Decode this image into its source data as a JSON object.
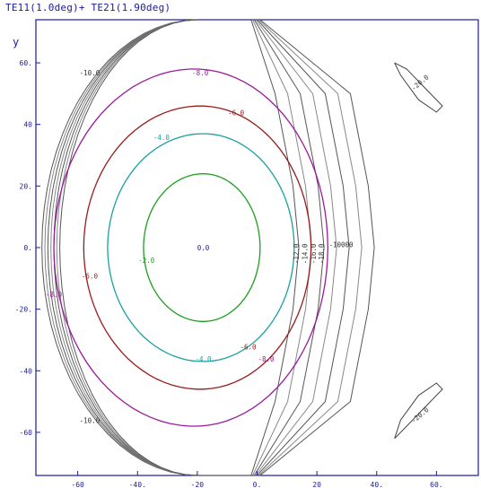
{
  "chart_data": {
    "type": "contour",
    "title": "TE11(1.0deg)+ TE21(1.90deg)",
    "xlabel": "",
    "ylabel": "y",
    "xlim": [
      -74,
      74
    ],
    "ylim": [
      -74,
      74
    ],
    "x_ticks": [
      {
        "value": -60,
        "label": "-60"
      },
      {
        "value": -40,
        "label": "-40."
      },
      {
        "value": -20,
        "label": "-20"
      },
      {
        "value": 0,
        "label": "0."
      },
      {
        "value": 20,
        "label": "20"
      },
      {
        "value": 40,
        "label": "40."
      },
      {
        "value": 60,
        "label": "60."
      }
    ],
    "y_ticks": [
      {
        "value": 60,
        "label": "60."
      },
      {
        "value": 40,
        "label": "40"
      },
      {
        "value": 20,
        "label": "20."
      },
      {
        "value": 0,
        "label": "0."
      },
      {
        "value": -20,
        "label": "-20."
      },
      {
        "value": -40,
        "label": "-40"
      },
      {
        "value": -60,
        "label": "-60"
      }
    ],
    "peak": {
      "x": -18,
      "y": 0,
      "label": "0.0"
    },
    "contours": [
      {
        "level": -2,
        "label": "-2.0",
        "color": "#1ea01e",
        "cx": -18,
        "cy": 0,
        "rx": 20,
        "ry": 24,
        "label_at": {
          "x": -37,
          "y": -5
        }
      },
      {
        "level": -4,
        "label": "-4.0",
        "color": "#1aa0a0",
        "cx": -18,
        "cy": 0,
        "rx": 32,
        "ry": 37,
        "label_at": {
          "x": -32,
          "y": 35
        },
        "label2": "-4.0",
        "label2_at": {
          "x": -18,
          "y": -37
        }
      },
      {
        "level": -6,
        "label": "-6.0",
        "color": "#9a1a1a",
        "cx": -19,
        "cy": 0,
        "rx": 39,
        "ry": 46,
        "label_at": {
          "x": -7,
          "y": 43
        },
        "label2": "-6.0",
        "label2_at": {
          "x": -3,
          "y": -33
        },
        "label3": "-6.0",
        "label3_at": {
          "x": -56,
          "y": -10
        }
      },
      {
        "level": -8,
        "label": "-8.0",
        "color": "#9a1a9a",
        "cx": -21,
        "cy": 0,
        "rx": 47,
        "ry": 58,
        "label_at": {
          "x": -19,
          "y": 56
        },
        "label2": "-8.0",
        "label2_at": {
          "x": 3,
          "y": -37
        },
        "label3": "-8.0",
        "label3_at": {
          "x": -68,
          "y": -16
        }
      }
    ],
    "outer_contours": [
      {
        "color": "#555555",
        "x0": -72
      },
      {
        "color": "#888888",
        "x0": -71
      },
      {
        "color": "#555555",
        "x0": -70
      },
      {
        "color": "#888888",
        "x0": -69
      },
      {
        "color": "#555555",
        "x0": -68
      },
      {
        "color": "#888888",
        "x0": -67
      },
      {
        "color": "#555555",
        "x0": -66
      }
    ],
    "outer_labels": [
      {
        "label": "-10.0",
        "x": -56,
        "y": 56
      },
      {
        "label": "-10.0",
        "x": -56,
        "y": -57
      }
    ],
    "edge_labels": [
      "-12.0",
      "-14.0",
      "-16.0",
      "-18.0"
    ],
    "right_label": "-10000",
    "side_lobes": [
      {
        "label": "-20.0",
        "cx": 55,
        "cy": 53
      },
      {
        "label": "-20.0",
        "cx": 55,
        "cy": -55
      }
    ]
  }
}
